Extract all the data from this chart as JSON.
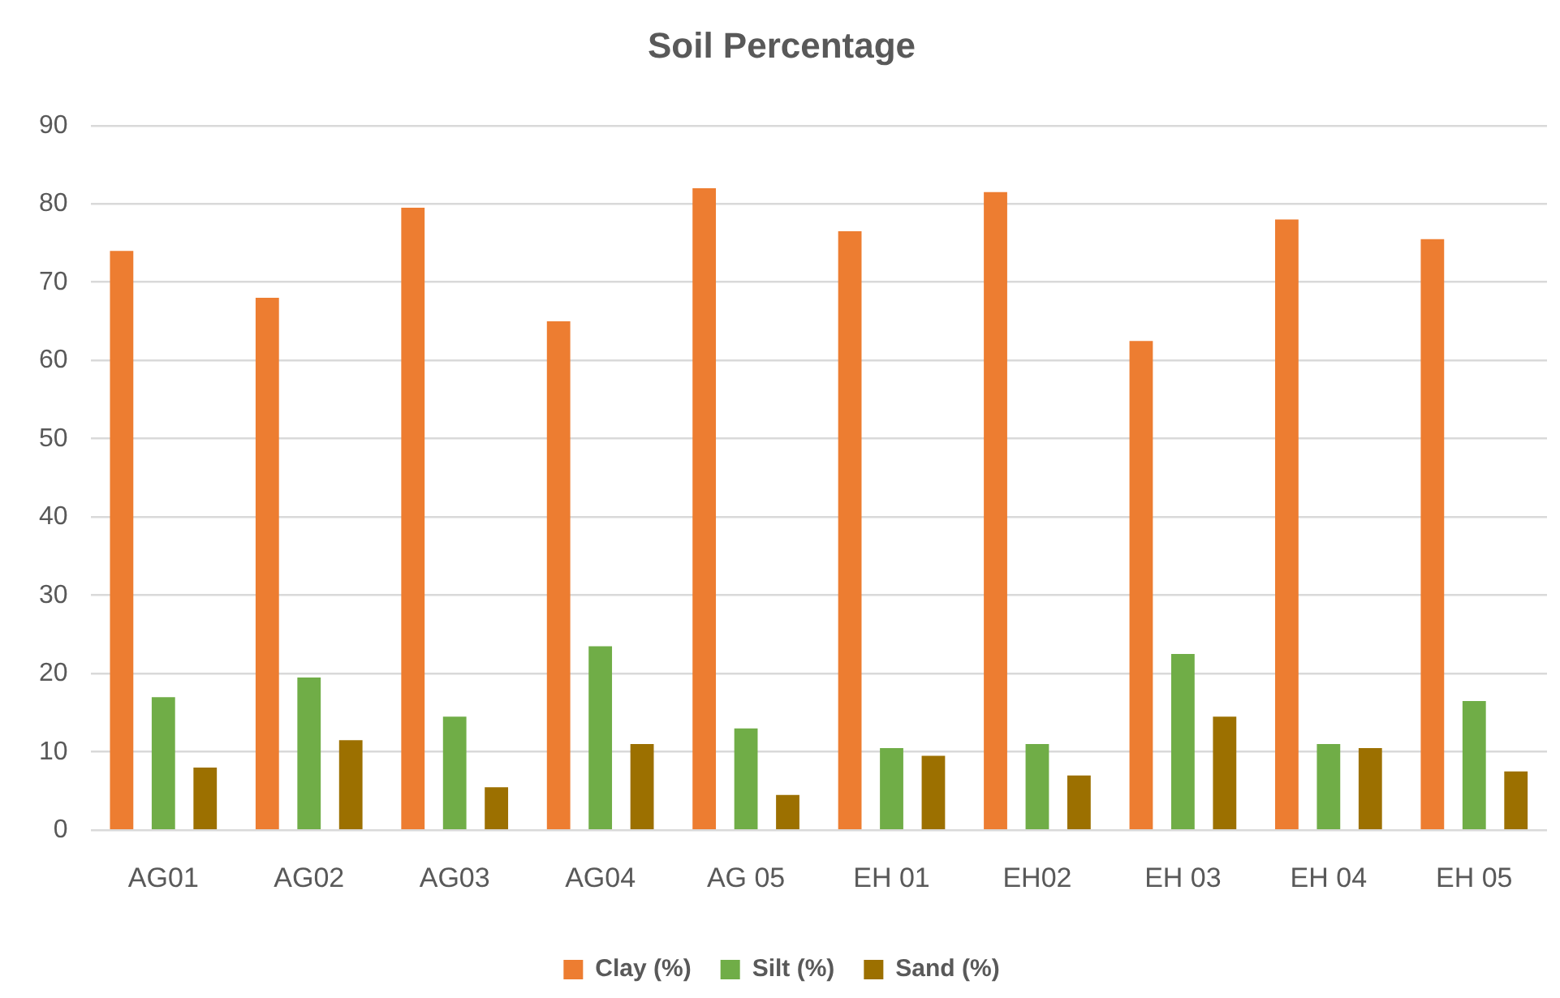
{
  "chart_data": {
    "type": "bar",
    "title": "Soil Percentage",
    "categories": [
      "AG01",
      "AG02",
      "AG03",
      "AG04",
      "AG 05",
      "EH 01",
      "EH02",
      "EH 03",
      "EH 04",
      "EH 05"
    ],
    "series": [
      {
        "name": "Clay (%)",
        "color": "#ed7d31",
        "values": [
          74,
          68,
          79.5,
          65,
          82,
          76.5,
          81.5,
          62.5,
          78,
          75.5
        ]
      },
      {
        "name": "Silt (%)",
        "color": "#70ad47",
        "values": [
          17,
          19.5,
          14.5,
          23.5,
          13,
          10.5,
          11,
          22.5,
          11,
          16.5
        ]
      },
      {
        "name": "Sand (%)",
        "color": "#9c7000",
        "values": [
          8,
          11.5,
          5.5,
          11,
          4.5,
          9.5,
          7,
          14.5,
          10.5,
          7.5
        ]
      }
    ],
    "ylim": [
      0,
      90
    ],
    "yticks": [
      0,
      10,
      20,
      30,
      40,
      50,
      60,
      70,
      80,
      90
    ],
    "grid": "y",
    "legend": "bottom"
  }
}
